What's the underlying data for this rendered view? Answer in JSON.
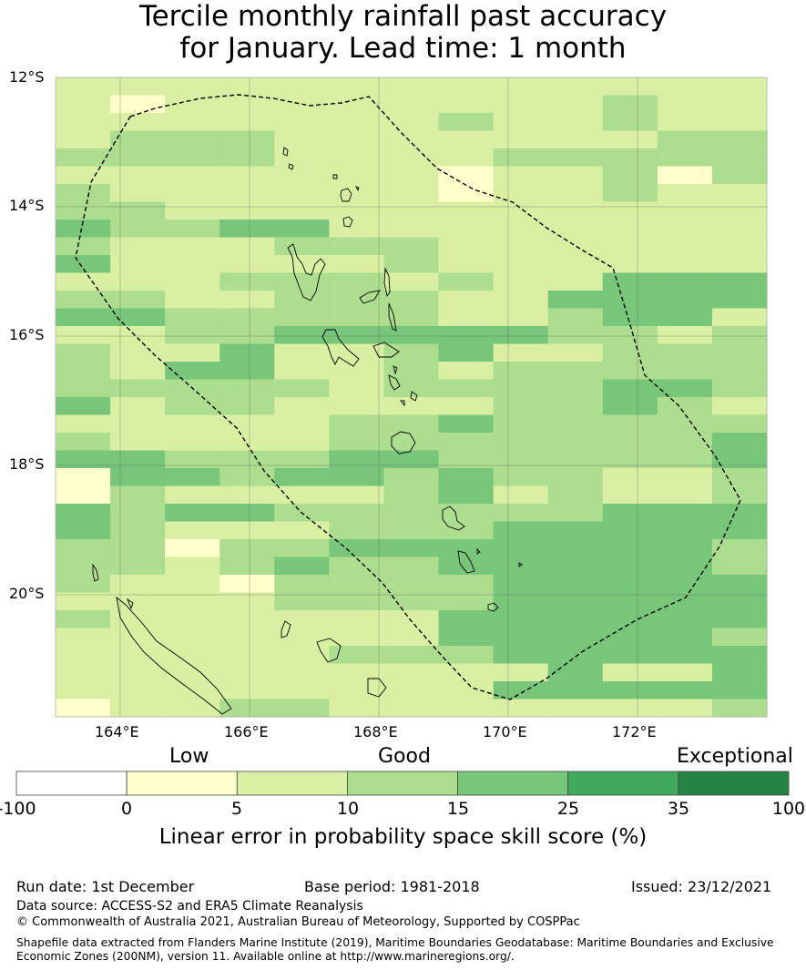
{
  "title": {
    "line1": "Tercile monthly rainfall past accuracy",
    "line2": "for January. Lead time: 1 month"
  },
  "map": {
    "lat_labels": [
      "12°S",
      "14°S",
      "16°S",
      "18°S",
      "20°S"
    ],
    "lon_labels": [
      "164°E",
      "166°E",
      "168°E",
      "170°E",
      "172°E"
    ],
    "grid_levels": [
      [
        2,
        2,
        2,
        2,
        2,
        2,
        2,
        2,
        2,
        2,
        2,
        2,
        2
      ],
      [
        2,
        1,
        2,
        2,
        2,
        2,
        2,
        2,
        2,
        2,
        3,
        2,
        2
      ],
      [
        2,
        2,
        2,
        2,
        2,
        2,
        2,
        3,
        2,
        2,
        3,
        2,
        2
      ],
      [
        2,
        3,
        3,
        3,
        2,
        2,
        2,
        2,
        2,
        2,
        2,
        3,
        3
      ],
      [
        3,
        3,
        3,
        3,
        2,
        2,
        2,
        2,
        3,
        3,
        3,
        3,
        3
      ],
      [
        2,
        2,
        2,
        2,
        2,
        2,
        2,
        1,
        2,
        2,
        3,
        1,
        3
      ],
      [
        3,
        2,
        2,
        2,
        2,
        2,
        2,
        1,
        2,
        2,
        3,
        2,
        2
      ],
      [
        3,
        3,
        2,
        2,
        2,
        2,
        2,
        2,
        2,
        2,
        2,
        2,
        2
      ],
      [
        4,
        3,
        3,
        4,
        4,
        2,
        2,
        2,
        2,
        2,
        2,
        2,
        2
      ],
      [
        3,
        2,
        2,
        2,
        3,
        3,
        3,
        2,
        2,
        2,
        2,
        2,
        2
      ],
      [
        4,
        2,
        2,
        2,
        2,
        2,
        3,
        2,
        2,
        2,
        2,
        2,
        2
      ],
      [
        2,
        2,
        2,
        3,
        3,
        3,
        2,
        3,
        2,
        2,
        4,
        4,
        4
      ],
      [
        3,
        3,
        2,
        2,
        3,
        3,
        3,
        2,
        2,
        4,
        4,
        4,
        4
      ],
      [
        4,
        4,
        3,
        3,
        3,
        3,
        3,
        2,
        2,
        3,
        4,
        4,
        2
      ],
      [
        2,
        2,
        3,
        3,
        4,
        4,
        4,
        4,
        4,
        3,
        3,
        2,
        3
      ],
      [
        3,
        2,
        2,
        4,
        2,
        2,
        3,
        4,
        2,
        2,
        3,
        3,
        3
      ],
      [
        3,
        2,
        4,
        4,
        2,
        2,
        3,
        2,
        3,
        3,
        3,
        3,
        3
      ],
      [
        3,
        3,
        3,
        3,
        3,
        2,
        3,
        3,
        3,
        3,
        4,
        4,
        3
      ],
      [
        4,
        2,
        3,
        3,
        2,
        2,
        2,
        2,
        3,
        3,
        4,
        3,
        2
      ],
      [
        2,
        2,
        2,
        2,
        2,
        3,
        3,
        4,
        3,
        3,
        3,
        3,
        3
      ],
      [
        3,
        2,
        2,
        2,
        2,
        3,
        3,
        3,
        3,
        3,
        3,
        3,
        4
      ],
      [
        4,
        4,
        3,
        3,
        3,
        4,
        4,
        3,
        3,
        3,
        3,
        3,
        4
      ],
      [
        1,
        4,
        4,
        3,
        4,
        4,
        3,
        4,
        3,
        3,
        2,
        2,
        3
      ],
      [
        1,
        3,
        2,
        2,
        2,
        2,
        3,
        4,
        2,
        3,
        2,
        2,
        3
      ],
      [
        4,
        3,
        4,
        4,
        3,
        3,
        3,
        3,
        3,
        3,
        4,
        4,
        4
      ],
      [
        4,
        3,
        2,
        2,
        2,
        3,
        3,
        3,
        4,
        4,
        4,
        4,
        4
      ],
      [
        3,
        3,
        1,
        3,
        3,
        4,
        4,
        4,
        4,
        4,
        4,
        4,
        3
      ],
      [
        3,
        3,
        2,
        3,
        4,
        3,
        3,
        4,
        4,
        4,
        4,
        4,
        3
      ],
      [
        3,
        2,
        2,
        1,
        3,
        3,
        3,
        3,
        4,
        4,
        4,
        4,
        4
      ],
      [
        2,
        2,
        2,
        2,
        3,
        3,
        3,
        3,
        4,
        4,
        4,
        4,
        4
      ],
      [
        3,
        2,
        2,
        2,
        2,
        2,
        2,
        4,
        4,
        4,
        4,
        4,
        4
      ],
      [
        2,
        2,
        2,
        2,
        2,
        2,
        2,
        4,
        4,
        4,
        4,
        4,
        3
      ],
      [
        2,
        2,
        2,
        2,
        2,
        3,
        3,
        3,
        4,
        4,
        4,
        4,
        4
      ],
      [
        2,
        2,
        2,
        2,
        2,
        2,
        2,
        2,
        2,
        4,
        2,
        2,
        4
      ],
      [
        2,
        2,
        2,
        2,
        2,
        2,
        2,
        2,
        4,
        4,
        4,
        4,
        4
      ],
      [
        1,
        2,
        2,
        3,
        3,
        2,
        2,
        2,
        2,
        2,
        2,
        2,
        3
      ]
    ]
  },
  "colorbar": {
    "category_low": "Low",
    "category_good": "Good",
    "category_exceptional": "Exceptional",
    "ticks": [
      "-100",
      "0",
      "5",
      "10",
      "15",
      "25",
      "35",
      "100"
    ],
    "colors": [
      "#ffffff",
      "#ffffcc",
      "#d9f0a3",
      "#addd8e",
      "#78c679",
      "#41ab5d",
      "#238443"
    ],
    "label": "Linear error in probability space skill score (%)"
  },
  "footer": {
    "run_date": "Run date: 1st December",
    "base_period": "Base period: 1981-2018",
    "issued": "Issued: 23/12/2021",
    "data_source": "Data source: ACCESS-S2 and ERA5 Climate Reanalysis",
    "copyright": "© Commonwealth of Australia 2021, Australian Bureau of Meteorology, Supported by COSPPac",
    "shapefile_line1": "Shapefile data extracted from Flanders Marine Institute (2019), Maritime Boundaries Geodatabase: Maritime Boundaries and Exclusive",
    "shapefile_line2": "Economic Zones (200NM), version 11. Available online at http://www.marineregions.org/."
  }
}
